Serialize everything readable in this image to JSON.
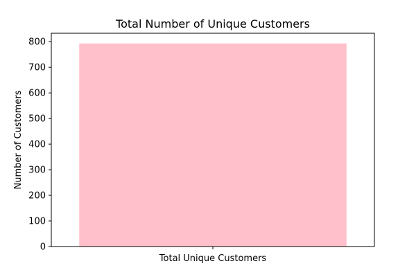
{
  "chart_data": {
    "type": "bar",
    "title": "Total Number of Unique Customers",
    "xlabel": "",
    "ylabel": "Number of Customers",
    "categories": [
      "Total Unique Customers"
    ],
    "values": [
      793
    ],
    "ylim": [
      0,
      833
    ],
    "yticks": [
      0,
      100,
      200,
      300,
      400,
      500,
      600,
      700,
      800
    ],
    "ytick_labels": [
      "0",
      "100",
      "200",
      "300",
      "400",
      "500",
      "600",
      "700",
      "800"
    ],
    "grid": false,
    "legend": "none",
    "bar_color": "#ffc0cb",
    "axis_color": "#000000"
  }
}
